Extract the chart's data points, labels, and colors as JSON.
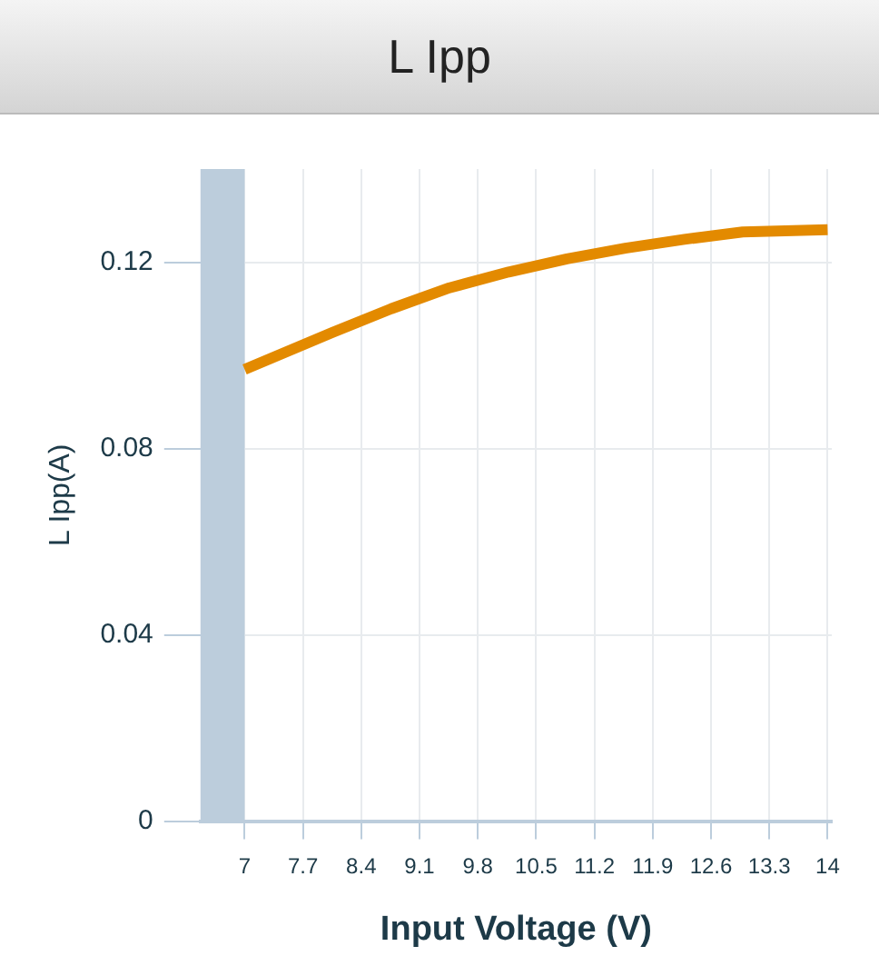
{
  "chart_data": {
    "type": "line",
    "title": "L Ipp",
    "xlabel": "Input Voltage (V)",
    "ylabel": "L Ipp(A)",
    "x": [
      7,
      8.05,
      8.76,
      9.46,
      10.17,
      10.87,
      11.57,
      12.28,
      12.98,
      14
    ],
    "series": [
      {
        "color": "#e38a00",
        "values": [
          0.097,
          0.1049,
          0.11,
          0.1145,
          0.1179,
          0.1207,
          0.123,
          0.1249,
          0.1265,
          0.127
        ]
      }
    ],
    "xlim": [
      6.47,
      14.05
    ],
    "xticks": [
      7,
      7.7,
      8.4,
      9.1,
      9.8,
      10.5,
      11.2,
      11.9,
      12.6,
      13.3,
      14
    ],
    "ylim": [
      0,
      0.14
    ],
    "yticks": [
      0,
      0.04,
      0.08,
      0.12
    ],
    "bands": [
      {
        "axis": "x",
        "from": 6.47,
        "to": 7,
        "color": "#bccddc"
      }
    ],
    "grid": true,
    "legend": false,
    "marker": "none",
    "line_style": "solid"
  }
}
